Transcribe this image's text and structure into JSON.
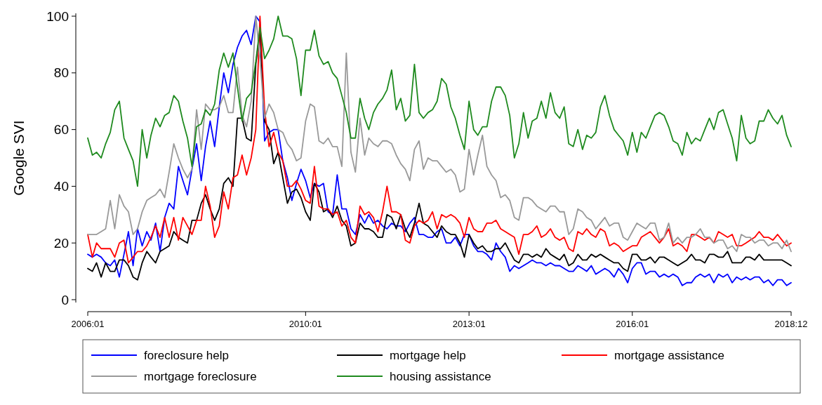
{
  "chart_data": {
    "type": "line",
    "ylabel": "Google SVI",
    "x": [
      "2006-01",
      "2006-02",
      "2006-03",
      "2006-04",
      "2006-05",
      "2006-06",
      "2006-07",
      "2006-08",
      "2006-09",
      "2006-10",
      "2006-11",
      "2006-12",
      "2007-01",
      "2007-02",
      "2007-03",
      "2007-04",
      "2007-05",
      "2007-06",
      "2007-07",
      "2007-08",
      "2007-09",
      "2007-10",
      "2007-11",
      "2007-12",
      "2008-01",
      "2008-02",
      "2008-03",
      "2008-04",
      "2008-05",
      "2008-06",
      "2008-07",
      "2008-08",
      "2008-09",
      "2008-10",
      "2008-11",
      "2008-12",
      "2009-01",
      "2009-02",
      "2009-03",
      "2009-04",
      "2009-05",
      "2009-06",
      "2009-07",
      "2009-08",
      "2009-09",
      "2009-10",
      "2009-11",
      "2009-12",
      "2010-01",
      "2010-02",
      "2010-03",
      "2010-04",
      "2010-05",
      "2010-06",
      "2010-07",
      "2010-08",
      "2010-09",
      "2010-10",
      "2010-11",
      "2010-12",
      "2011-01",
      "2011-02",
      "2011-03",
      "2011-04",
      "2011-05",
      "2011-06",
      "2011-07",
      "2011-08",
      "2011-09",
      "2011-10",
      "2011-11",
      "2011-12",
      "2012-01",
      "2012-02",
      "2012-03",
      "2012-04",
      "2012-05",
      "2012-06",
      "2012-07",
      "2012-08",
      "2012-09",
      "2012-10",
      "2012-11",
      "2012-12",
      "2013-01",
      "2013-02",
      "2013-03",
      "2013-04",
      "2013-05",
      "2013-06",
      "2013-07",
      "2013-08",
      "2013-09",
      "2013-10",
      "2013-11",
      "2013-12",
      "2014-01",
      "2014-02",
      "2014-03",
      "2014-04",
      "2014-05",
      "2014-06",
      "2014-07",
      "2014-08",
      "2014-09",
      "2014-10",
      "2014-11",
      "2014-12",
      "2015-01",
      "2015-02",
      "2015-03",
      "2015-04",
      "2015-05",
      "2015-06",
      "2015-07",
      "2015-08",
      "2015-09",
      "2015-10",
      "2015-11",
      "2015-12",
      "2016-01",
      "2016-02",
      "2016-03",
      "2016-04",
      "2016-05",
      "2016-06",
      "2016-07",
      "2016-08",
      "2016-09",
      "2016-10",
      "2016-11",
      "2016-12",
      "2017-01",
      "2017-02",
      "2017-03",
      "2017-04",
      "2017-05",
      "2017-06",
      "2017-07",
      "2017-08",
      "2017-09",
      "2017-10",
      "2017-11",
      "2017-12",
      "2018-01",
      "2018-02",
      "2018-03",
      "2018-04",
      "2018-05",
      "2018-06",
      "2018-07",
      "2018-08",
      "2018-09",
      "2018-10",
      "2018-11",
      "2018-12"
    ],
    "series": [
      {
        "name": "foreclosure help",
        "color": "#0000ff",
        "values": [
          16,
          15,
          16,
          15,
          13,
          12,
          14,
          8,
          16,
          24,
          12,
          25,
          19,
          24,
          21,
          27,
          17,
          29,
          34,
          32,
          47,
          42,
          37,
          46,
          55,
          42,
          54,
          63,
          54,
          68,
          80,
          73,
          83,
          89,
          93,
          95,
          90,
          100,
          98,
          56,
          59,
          60,
          60,
          49,
          43,
          35,
          41,
          46,
          42,
          36,
          41,
          40,
          41,
          31,
          30,
          44,
          32,
          32,
          25,
          23,
          30,
          27,
          30,
          27,
          28,
          26,
          25,
          27,
          26,
          26,
          24,
          27,
          29,
          23,
          23,
          22,
          22,
          24,
          25,
          20,
          20,
          22,
          19,
          23,
          23,
          19,
          17,
          17,
          16,
          14,
          20,
          17,
          15,
          10,
          12,
          11,
          12,
          13,
          14,
          13,
          13,
          12,
          13,
          12,
          12,
          11,
          10,
          10,
          12,
          11,
          10,
          12,
          9,
          10,
          11,
          10,
          8,
          11,
          9,
          6,
          11,
          13,
          13,
          9,
          10,
          10,
          8,
          9,
          8,
          9,
          8,
          5,
          6,
          6,
          8,
          9,
          8,
          9,
          6,
          9,
          8,
          9,
          6,
          8,
          7,
          8,
          7,
          8,
          8,
          6,
          7,
          5,
          7,
          7,
          5,
          6
        ]
      },
      {
        "name": "mortgage help",
        "color": "#000000",
        "values": [
          11,
          10,
          13,
          8,
          13,
          10,
          10,
          14,
          14,
          12,
          8,
          7,
          13,
          17,
          15,
          13,
          17,
          18,
          19,
          24,
          22,
          21,
          20,
          28,
          28,
          34,
          37,
          32,
          28,
          32,
          41,
          43,
          40,
          64,
          64,
          57,
          56,
          83,
          95,
          63,
          60,
          48,
          52,
          43,
          34,
          38,
          39,
          36,
          31,
          28,
          41,
          38,
          31,
          32,
          29,
          33,
          28,
          26,
          19,
          20,
          27,
          25,
          25,
          24,
          22,
          22,
          30,
          29,
          25,
          30,
          25,
          22,
          27,
          34,
          27,
          26,
          24,
          22,
          26,
          24,
          23,
          23,
          20,
          15,
          23,
          20,
          18,
          19,
          17,
          17,
          18,
          18,
          20,
          17,
          14,
          13,
          16,
          16,
          15,
          16,
          15,
          18,
          16,
          15,
          14,
          16,
          12,
          13,
          16,
          14,
          14,
          16,
          15,
          16,
          15,
          14,
          13,
          13,
          11,
          10,
          16,
          16,
          14,
          14,
          15,
          13,
          15,
          15,
          14,
          13,
          12,
          13,
          14,
          16,
          14,
          14,
          13,
          16,
          16,
          15,
          15,
          17,
          13,
          13,
          13,
          15,
          15,
          14,
          16,
          14,
          14,
          14,
          14,
          14,
          13,
          12
        ]
      },
      {
        "name": "mortgage assistance",
        "color": "#ff0000",
        "values": [
          23,
          15,
          20,
          18,
          18,
          18,
          15,
          20,
          21,
          13,
          15,
          17,
          17,
          19,
          22,
          26,
          22,
          29,
          22,
          29,
          21,
          29,
          26,
          23,
          28,
          28,
          40,
          33,
          22,
          26,
          38,
          32,
          43,
          44,
          51,
          44,
          50,
          60,
          100,
          67,
          54,
          59,
          52,
          49,
          40,
          40,
          42,
          39,
          35,
          34,
          47,
          33,
          32,
          32,
          30,
          31,
          26,
          28,
          22,
          20,
          33,
          30,
          31,
          29,
          24,
          31,
          40,
          31,
          31,
          30,
          21,
          20,
          26,
          28,
          27,
          28,
          31,
          25,
          30,
          29,
          30,
          29,
          27,
          22,
          29,
          25,
          24,
          24,
          27,
          27,
          28,
          25,
          24,
          23,
          22,
          16,
          23,
          23,
          24,
          26,
          22,
          23,
          25,
          22,
          21,
          22,
          18,
          17,
          24,
          23,
          25,
          23,
          22,
          25,
          24,
          19,
          20,
          19,
          17,
          18,
          19,
          19,
          22,
          23,
          24,
          22,
          20,
          22,
          25,
          19,
          20,
          19,
          17,
          23,
          23,
          22,
          21,
          22,
          20,
          24,
          23,
          22,
          23,
          19,
          19,
          20,
          21,
          22,
          24,
          22,
          22,
          21,
          23,
          21,
          19,
          20
        ]
      },
      {
        "name": "mortgage foreclosure",
        "color": "#999999",
        "values": [
          23,
          23,
          23,
          24,
          25,
          35,
          25,
          37,
          33,
          31,
          23,
          25,
          31,
          35,
          36,
          37,
          39,
          36,
          45,
          55,
          50,
          46,
          43,
          46,
          67,
          53,
          69,
          67,
          67,
          68,
          72,
          66,
          66,
          82,
          65,
          61,
          70,
          100,
          85,
          64,
          69,
          66,
          60,
          59,
          55,
          53,
          49,
          50,
          63,
          69,
          68,
          56,
          55,
          57,
          54,
          54,
          47,
          87,
          52,
          45,
          64,
          51,
          57,
          55,
          54,
          56,
          56,
          55,
          51,
          48,
          46,
          42,
          53,
          56,
          46,
          50,
          49,
          49,
          47,
          45,
          46,
          44,
          38,
          39,
          53,
          44,
          51,
          58,
          47,
          44,
          42,
          36,
          37,
          35,
          29,
          28,
          36,
          36,
          35,
          33,
          32,
          31,
          33,
          33,
          31,
          31,
          23,
          25,
          32,
          31,
          29,
          28,
          25,
          27,
          29,
          26,
          27,
          27,
          22,
          21,
          24,
          27,
          26,
          25,
          27,
          27,
          21,
          22,
          27,
          20,
          22,
          20,
          22,
          22,
          23,
          25,
          22,
          22,
          20,
          21,
          21,
          18,
          19,
          17,
          23,
          22,
          22,
          20,
          21,
          21,
          19,
          20,
          20,
          18,
          21,
          17
        ]
      },
      {
        "name": "housing assistance",
        "color": "#1e8a1e",
        "values": [
          57,
          51,
          52,
          50,
          55,
          59,
          67,
          70,
          57,
          53,
          49,
          40,
          60,
          50,
          58,
          64,
          61,
          65,
          66,
          72,
          70,
          63,
          57,
          47,
          61,
          62,
          67,
          65,
          69,
          81,
          87,
          82,
          87,
          75,
          63,
          71,
          73,
          84,
          96,
          85,
          88,
          92,
          100,
          93,
          93,
          92,
          85,
          72,
          88,
          88,
          95,
          86,
          83,
          84,
          80,
          78,
          72,
          66,
          57,
          57,
          71,
          64,
          60,
          66,
          69,
          71,
          74,
          81,
          67,
          71,
          63,
          65,
          83,
          66,
          64,
          66,
          67,
          70,
          78,
          76,
          68,
          64,
          58,
          53,
          70,
          60,
          58,
          61,
          61,
          70,
          75,
          75,
          72,
          65,
          50,
          55,
          66,
          57,
          63,
          64,
          70,
          64,
          73,
          66,
          64,
          68,
          55,
          54,
          60,
          53,
          58,
          57,
          59,
          68,
          72,
          65,
          60,
          58,
          56,
          51,
          59,
          52,
          59,
          57,
          61,
          65,
          66,
          65,
          61,
          56,
          55,
          51,
          59,
          55,
          57,
          56,
          60,
          64,
          60,
          66,
          67,
          62,
          57,
          49,
          65,
          57,
          55,
          56,
          63,
          63,
          67,
          64,
          62,
          65,
          58,
          54
        ]
      }
    ],
    "xlim": [
      "2006-01",
      "2018-12"
    ],
    "xticks": [
      {
        "value": "2006-01",
        "label": "2006:01"
      },
      {
        "value": "2010-01",
        "label": "2010:01"
      },
      {
        "value": "2013-01",
        "label": "2013:01"
      },
      {
        "value": "2016-01",
        "label": "2016:01"
      },
      {
        "value": "2018-12",
        "label": "2018:12"
      }
    ],
    "ylim": [
      -1,
      101
    ],
    "yticks": [
      0,
      20,
      40,
      60,
      80,
      100
    ],
    "grid": false,
    "legend": "bottom",
    "marker": "none",
    "line_style": "solid"
  }
}
